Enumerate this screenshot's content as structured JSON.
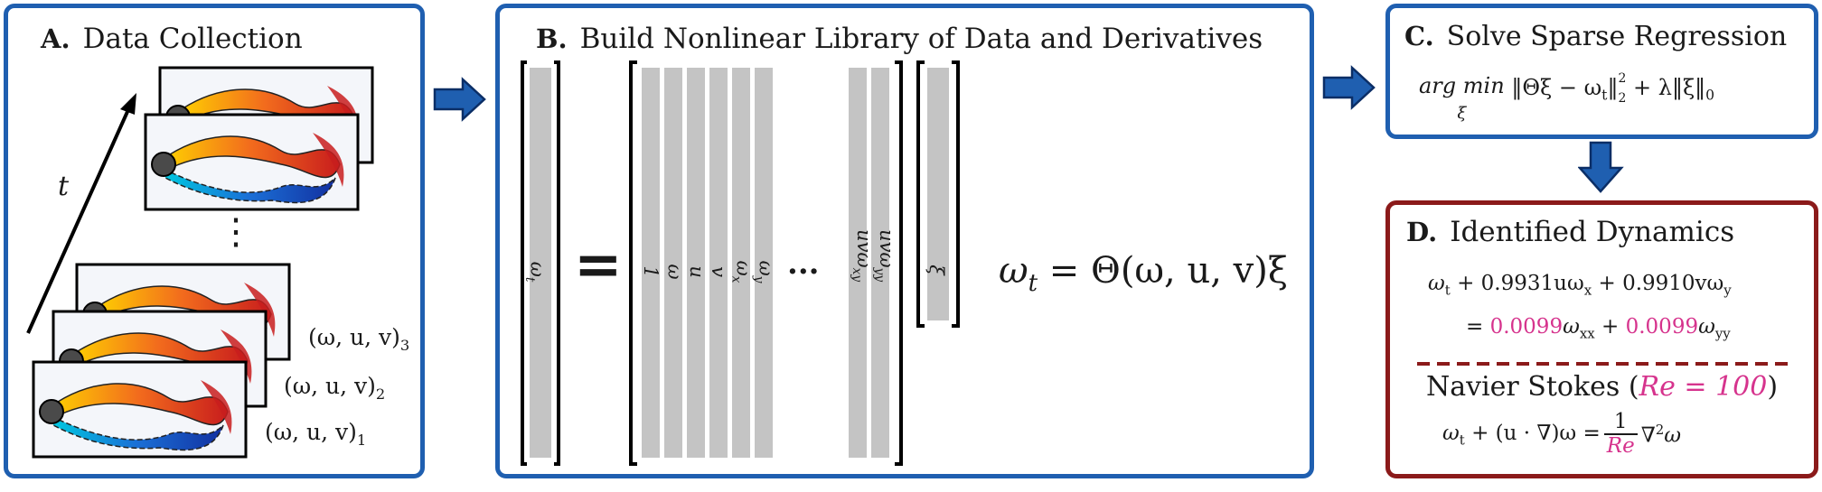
{
  "panel_a": {
    "title_letter": "A.",
    "title_text": "Data Collection",
    "time_label": "t",
    "ellipsis": "⋮",
    "snapshot_labels": [
      "(ω, u, v)",
      "(ω, u, v)",
      "(ω, u, v)"
    ],
    "snapshot_subs": [
      "3",
      "2",
      "1"
    ]
  },
  "panel_b": {
    "title_letter": "B.",
    "title_text": "Build Nonlinear Library of Data and Derivatives",
    "lhs_label": "ω",
    "lhs_sub": "t",
    "equals": "=",
    "column_labels": [
      "1",
      "ω",
      "u",
      "v",
      "ω",
      "ω"
    ],
    "column_subs": [
      "",
      "",
      "",
      "",
      "x",
      "y"
    ],
    "dots": "···",
    "tail_labels": [
      "uvω",
      "uvω"
    ],
    "tail_subs": [
      "xy",
      "yy"
    ],
    "xi_label": "ξ",
    "equation": {
      "lhs": "ω",
      "lhs_sub": "t",
      "rhs": " = Θ(ω, u, v)ξ"
    }
  },
  "panel_c": {
    "title_letter": "C.",
    "title_text": "Solve Sparse Regression",
    "argmin": "arg min",
    "argmin_sub": "ξ",
    "objective_a": "‖Θξ − ω",
    "objective_a_sub": "t",
    "objective_b": "‖",
    "objective_b_sub": "2",
    "objective_b_sup": "2",
    "objective_c": " + λ‖ξ‖",
    "objective_c_sub": "0"
  },
  "panel_d": {
    "title_letter": "D.",
    "title_text": "Identified Dynamics",
    "line1": {
      "a": "ω",
      "a_sub": "t",
      "b": " + 0.9931uω",
      "b_sub": "x",
      "c": " + 0.9910vω",
      "c_sub": "y"
    },
    "line2": {
      "eq": "= ",
      "coef1": "0.0099",
      "t1": "ω",
      "t1_sub": "xx",
      "plus": " + ",
      "coef2": "0.0099",
      "t2": "ω",
      "t2_sub": "yy"
    },
    "ns_title": "Navier Stokes (",
    "ns_re": "Re = 100",
    "ns_close": ")",
    "ns_eq_a": "ω",
    "ns_eq_a_sub": "t",
    "ns_eq_b": " + (u · ∇)ω = ",
    "ns_frac_num": "1",
    "ns_frac_den": "Re",
    "ns_eq_c": "∇",
    "ns_eq_c_sup": "2",
    "ns_eq_d": "ω"
  },
  "colors": {
    "accent_blue": "#1f5fb0",
    "accent_red": "#8b1a1a",
    "highlight": "#d6338d",
    "column_gray": "#c4c4c4"
  }
}
